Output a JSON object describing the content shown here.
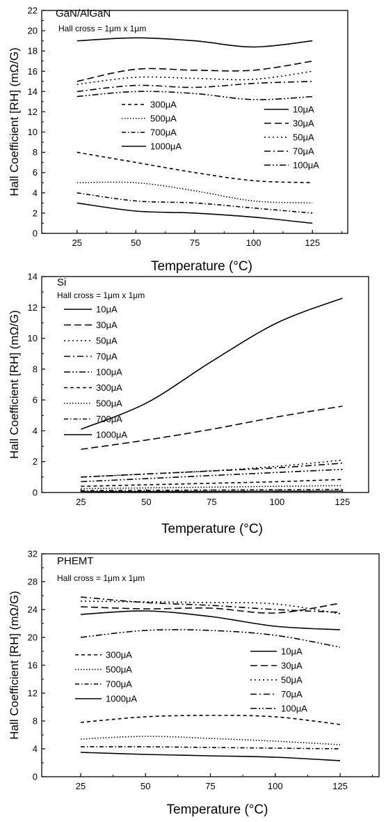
{
  "chart_data": [
    {
      "type": "line",
      "title": "GaN/AlGaN",
      "annotation": "Hall cross = 1μm x 1μm",
      "xlabel": "Temperature (°C)",
      "ylabel": "Hall Coefficient [RH] (mΩ/G)",
      "xlim": [
        10,
        140
      ],
      "ylim": [
        0,
        22
      ],
      "xticks": [
        25,
        50,
        75,
        100,
        125
      ],
      "yticks": [
        0,
        2,
        4,
        6,
        8,
        10,
        12,
        14,
        16,
        18,
        20,
        22
      ],
      "legend": [
        {
          "entries": [
            "300μA",
            "500μA",
            "700μA",
            "1000μA"
          ],
          "position": "middle-left"
        },
        {
          "entries": [
            "10μA",
            "30μA",
            "50μA",
            "70μA",
            "100μA"
          ],
          "position": "middle-right"
        }
      ],
      "x": [
        25,
        50,
        75,
        100,
        125
      ],
      "series": [
        {
          "name": "10μA",
          "dash": "solid",
          "values": [
            19.0,
            19.3,
            19.0,
            18.4,
            19.0
          ]
        },
        {
          "name": "30μA",
          "dash": "dash",
          "values": [
            15.0,
            16.2,
            16.1,
            16.1,
            17.0
          ]
        },
        {
          "name": "50μA",
          "dash": "dot",
          "values": [
            14.7,
            15.4,
            15.3,
            15.2,
            16.0
          ]
        },
        {
          "name": "70μA",
          "dash": "dashdot",
          "values": [
            14.0,
            14.6,
            14.4,
            14.8,
            15.0
          ]
        },
        {
          "name": "100μA",
          "dash": "dashdotdot",
          "values": [
            13.5,
            14.0,
            13.8,
            13.2,
            13.5
          ]
        },
        {
          "name": "300μA",
          "dash": "shortdash",
          "values": [
            8.0,
            7.0,
            6.0,
            5.2,
            5.0
          ]
        },
        {
          "name": "500μA",
          "dash": "shortdot",
          "values": [
            5.0,
            5.0,
            4.2,
            3.2,
            3.0
          ]
        },
        {
          "name": "700μA",
          "dash": "shortdashdot",
          "values": [
            4.0,
            3.2,
            3.0,
            2.5,
            2.0
          ]
        },
        {
          "name": "1000μA",
          "dash": "solid",
          "values": [
            3.0,
            2.2,
            2.0,
            1.6,
            1.0
          ]
        }
      ]
    },
    {
      "type": "line",
      "title": "Si",
      "annotation": "Hall cross = 1μm x 1μm",
      "xlabel": "Temperature (°C)",
      "ylabel": "Hall Coefficient [RH] (mΩ/G)",
      "xlim": [
        10,
        135
      ],
      "ylim": [
        0,
        14
      ],
      "xticks": [
        25,
        50,
        75,
        100,
        125
      ],
      "yticks": [
        0,
        2,
        4,
        6,
        8,
        10,
        12,
        14
      ],
      "legend": [
        {
          "entries": [
            "10μA",
            "30μA",
            "50μA",
            "70μA",
            "100μA",
            "300μA",
            "500μA",
            "700μA",
            "1000μA"
          ],
          "position": "upper-left"
        }
      ],
      "x": [
        25,
        50,
        75,
        100,
        125
      ],
      "series": [
        {
          "name": "10μA",
          "dash": "solid",
          "values": [
            4.1,
            5.8,
            8.5,
            11.0,
            12.6
          ]
        },
        {
          "name": "30μA",
          "dash": "dash",
          "values": [
            2.8,
            3.4,
            4.1,
            4.9,
            5.6
          ]
        },
        {
          "name": "50μA",
          "dash": "dot",
          "values": [
            1.0,
            1.2,
            1.4,
            1.7,
            2.1
          ]
        },
        {
          "name": "70μA",
          "dash": "dashdot",
          "values": [
            1.0,
            1.2,
            1.4,
            1.6,
            1.9
          ]
        },
        {
          "name": "100μA",
          "dash": "dashdotdot",
          "values": [
            0.7,
            0.9,
            1.1,
            1.3,
            1.5
          ]
        },
        {
          "name": "300μA",
          "dash": "shortdash",
          "values": [
            0.4,
            0.5,
            0.6,
            0.7,
            0.85
          ]
        },
        {
          "name": "500μA",
          "dash": "shortdot",
          "values": [
            0.25,
            0.3,
            0.35,
            0.4,
            0.45
          ]
        },
        {
          "name": "700μA",
          "dash": "shortdashdot",
          "values": [
            0.12,
            0.14,
            0.16,
            0.18,
            0.2
          ]
        },
        {
          "name": "1000μA",
          "dash": "solid",
          "values": [
            0.05,
            0.06,
            0.07,
            0.08,
            0.09
          ]
        }
      ]
    },
    {
      "type": "line",
      "title": "PHEMT",
      "annotation": "Hall cross = 1μm x 1μm",
      "xlabel": "Temperature (°C)",
      "ylabel": "Hall Coefficient [RH] (mΩ/G)",
      "xlim": [
        10,
        140
      ],
      "ylim": [
        0,
        32
      ],
      "xticks": [
        25,
        50,
        75,
        100,
        125
      ],
      "yticks": [
        0,
        4,
        8,
        12,
        16,
        20,
        24,
        28,
        32
      ],
      "legend": [
        {
          "entries": [
            "300μA",
            "500μA",
            "700μA",
            "1000μA"
          ],
          "position": "middle-left"
        },
        {
          "entries": [
            "10μA",
            "30μA",
            "50μA",
            "70μA",
            "100μA"
          ],
          "position": "middle-right"
        }
      ],
      "x": [
        25,
        50,
        75,
        100,
        125
      ],
      "series": [
        {
          "name": "10μA",
          "dash": "solid",
          "values": [
            23.3,
            23.8,
            23.0,
            21.6,
            21.1
          ]
        },
        {
          "name": "30μA",
          "dash": "dash",
          "values": [
            24.4,
            24.1,
            24.2,
            23.5,
            24.9
          ]
        },
        {
          "name": "50μA",
          "dash": "dot",
          "values": [
            25.2,
            25.1,
            25.0,
            24.8,
            23.4
          ]
        },
        {
          "name": "70μA",
          "dash": "dashdot",
          "values": [
            25.8,
            25.0,
            24.6,
            24.0,
            23.6
          ]
        },
        {
          "name": "100μA",
          "dash": "dashdotdot",
          "values": [
            20.0,
            21.0,
            21.0,
            20.3,
            18.6
          ]
        },
        {
          "name": "300μA",
          "dash": "shortdash",
          "values": [
            7.8,
            8.6,
            8.8,
            8.6,
            7.5
          ]
        },
        {
          "name": "500μA",
          "dash": "shortdot",
          "values": [
            5.4,
            5.8,
            5.5,
            5.1,
            4.6
          ]
        },
        {
          "name": "700μA",
          "dash": "shortdashdot",
          "values": [
            4.3,
            4.3,
            4.2,
            4.1,
            4.0
          ]
        },
        {
          "name": "1000μA",
          "dash": "solid",
          "values": [
            3.5,
            3.2,
            3.0,
            2.8,
            2.3
          ]
        }
      ]
    }
  ]
}
